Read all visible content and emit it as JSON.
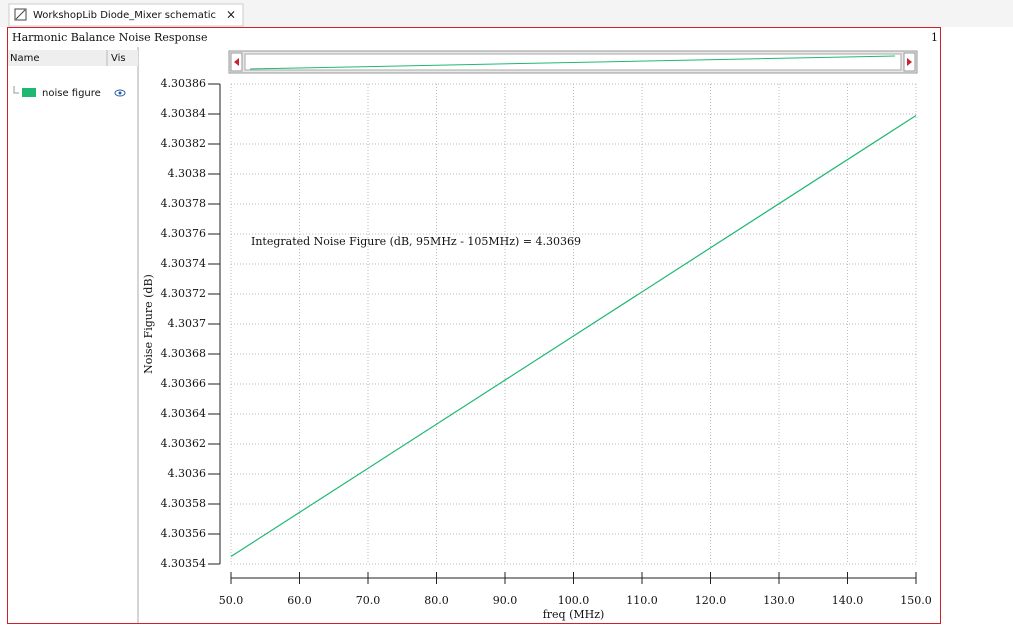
{
  "tab_title": "WorkshopLib Diode_Mixer schematic",
  "panel": {
    "title": "Harmonic Balance Noise Response",
    "page_number": "1",
    "legend_headers": [
      "Name",
      "Vis"
    ]
  },
  "chart_data": {
    "type": "line",
    "x_label": "freq (MHz)",
    "y_label": "Noise Figure (dB)",
    "annotation": "Integrated Noise Figure (dB, 95MHz - 105MHz) = 4.30369",
    "x": [
      50,
      150
    ],
    "series": [
      {
        "name": "noise figure",
        "color": "#1fb872",
        "values": [
          4.303545,
          4.303839
        ]
      }
    ],
    "xlim": [
      50,
      150
    ],
    "xticks": [
      {
        "value": 50,
        "label": "50.0"
      },
      {
        "value": 60,
        "label": "60.0"
      },
      {
        "value": 70,
        "label": "70.0"
      },
      {
        "value": 80,
        "label": "80.0"
      },
      {
        "value": 90,
        "label": "90.0"
      },
      {
        "value": 100,
        "label": "100.0"
      },
      {
        "value": 110,
        "label": "110.0"
      },
      {
        "value": 120,
        "label": "120.0"
      },
      {
        "value": 130,
        "label": "130.0"
      },
      {
        "value": 140,
        "label": "140.0"
      },
      {
        "value": 150,
        "label": "150.0"
      }
    ],
    "ylim": [
      4.30354,
      4.30386
    ],
    "yticks": [
      4.30354,
      4.30356,
      4.30358,
      4.3036,
      4.30362,
      4.30364,
      4.30366,
      4.30368,
      4.3037,
      4.30372,
      4.30374,
      4.30376,
      4.30378,
      4.3038,
      4.30382,
      4.30384,
      4.30386
    ],
    "grid": true
  }
}
